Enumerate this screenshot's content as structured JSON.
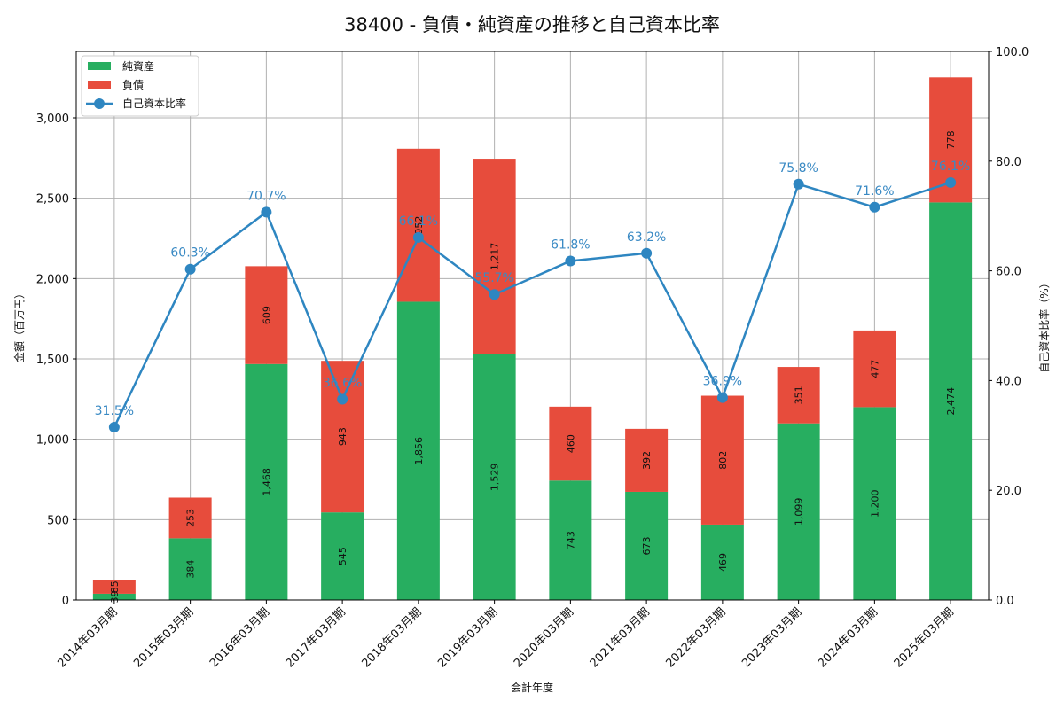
{
  "chart_data": {
    "type": "bar",
    "title": "38400 - 負債・純資産の推移と自己資本比率",
    "xlabel": "会計年度",
    "ylabel": "金額（百万円）",
    "y2label": "自己資本比率（%）",
    "ylim": [
      0,
      3400
    ],
    "y2lim": [
      0,
      100
    ],
    "yticks": [
      "0",
      "500",
      "1,000",
      "1,500",
      "2,000",
      "2,500",
      "3,000"
    ],
    "y2ticks": [
      "0.0",
      "20.0",
      "40.0",
      "60.0",
      "80.0",
      "100.0"
    ],
    "grid": true,
    "legend_position": "upper left",
    "categories": [
      "2014年03月期",
      "2015年03月期",
      "2016年03月期",
      "2017年03月期",
      "2018年03月期",
      "2019年03月期",
      "2020年03月期",
      "2021年03月期",
      "2022年03月期",
      "2023年03月期",
      "2024年03月期",
      "2025年03月期"
    ],
    "series": [
      {
        "name": "純資産",
        "type": "bar",
        "stacked": true,
        "color": "#27ae60",
        "values": [
          39,
          384,
          1468,
          545,
          1856,
          1529,
          743,
          673,
          469,
          1099,
          1200,
          2474
        ],
        "labels": [
          "39",
          "384",
          "1,468",
          "545",
          "1,856",
          "1,529",
          "743",
          "673",
          "469",
          "1,099",
          "1,200",
          "2,474"
        ]
      },
      {
        "name": "負債",
        "type": "bar",
        "stacked": true,
        "color": "#e74c3c",
        "values": [
          85,
          253,
          609,
          943,
          952,
          1217,
          460,
          392,
          802,
          351,
          477,
          778
        ],
        "labels": [
          "85",
          "253",
          "609",
          "943",
          "952",
          "1,217",
          "460",
          "392",
          "802",
          "351",
          "477",
          "778"
        ]
      },
      {
        "name": "自己資本比率",
        "type": "line",
        "axis": "right",
        "color": "#2e86c1",
        "values": [
          31.5,
          60.3,
          70.7,
          36.6,
          66.1,
          55.7,
          61.8,
          63.2,
          36.9,
          75.8,
          71.6,
          76.1
        ],
        "labels": [
          "31.5%",
          "60.3%",
          "70.7%",
          "36.6%",
          "66.1%",
          "55.7%",
          "61.8%",
          "63.2%",
          "36.9%",
          "75.8%",
          "71.6%",
          "76.1%"
        ]
      }
    ]
  }
}
